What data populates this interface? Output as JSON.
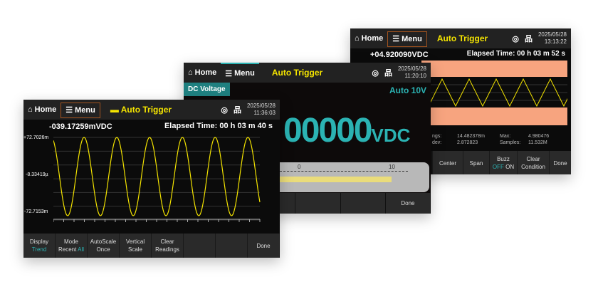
{
  "common": {
    "home": "Home",
    "menu": "Menu",
    "trigger": "Auto Trigger",
    "done": "Done",
    "icons": [
      "home-icon",
      "menu-icon",
      "camera-icon",
      "network-icon"
    ]
  },
  "back": {
    "date": "2025/05/28",
    "time": "13:13:22",
    "reading": "+04.920090VDC",
    "elapsed": "Elapsed Time: 00 h 03 m 52 s",
    "stats": [
      "ngs:",
      "14.482378m",
      "dev:",
      "2.872823",
      "Max:",
      "4.980476",
      "Samples:",
      "11.532M"
    ],
    "keys": [
      "Center",
      "Span"
    ],
    "buzz": {
      "label": "Buzz",
      "off": "OFF",
      "on": "ON"
    },
    "clear": [
      "Clear",
      "Condition"
    ],
    "limit_color": "#f7a47f"
  },
  "middle": {
    "date": "2025/05/28",
    "time": "11:20:10",
    "function": "DC Voltage",
    "range": "Auto 10V",
    "reading": "00000",
    "unit": "VDC",
    "scale": [
      "0",
      "10"
    ],
    "accent": "#2bb3b3"
  },
  "front": {
    "date": "2025/05/28",
    "time": "11:36:03",
    "reading": "-039.17259mVDC",
    "elapsed": "Elapsed Time: 00 h 03 m 40 s",
    "chart_data": {
      "type": "line",
      "y_ticks": [
        "+72.7026m",
        "-8.33419µ",
        "-72.7153m"
      ],
      "ylim": [
        -0.0727153,
        0.0727026
      ],
      "cycles": 6.3,
      "color": "#f4e400"
    },
    "keys": [
      {
        "l1": "Display",
        "l2": "Trend"
      },
      {
        "l1": "Mode",
        "l2a": "Recent",
        "l2b": "All"
      },
      {
        "l1": "AutoScale",
        "l2": "Once"
      },
      {
        "l1": "Vertical",
        "l2": "Scale"
      },
      {
        "l1": "Clear",
        "l2": "Readings"
      }
    ]
  }
}
